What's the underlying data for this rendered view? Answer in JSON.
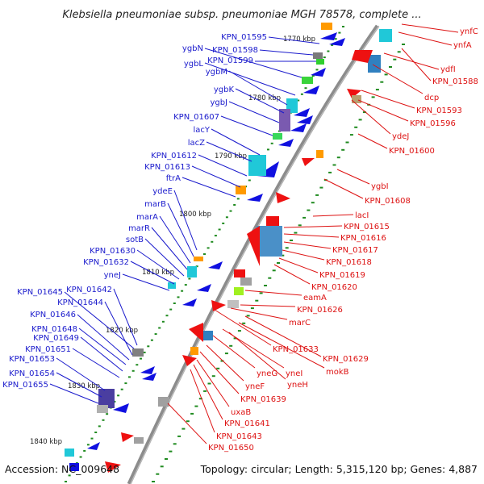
{
  "title": "Klebsiella pneumoniae subsp. pneumoniae MGH 78578, complete ...",
  "footer": {
    "accession": "Accession: NC_009648",
    "summary": "Topology: circular; Length: 5,315,120 bp; Genes: 4,887"
  },
  "colors": {
    "backbone": "#8c8c8c",
    "left_strand_genes": "#1010e0",
    "right_strand_genes": "#ee1111",
    "left_labels": "#1a1acc",
    "right_labels": "#dd1111",
    "tick_marks": "#1f8a1f"
  },
  "kbp_ticks": [
    "1770 kbp",
    "1780 kbp",
    "1790 kbp",
    "1800 kbp",
    "1810 kbp",
    "1820 kbp",
    "1830 kbp",
    "1840 kbp"
  ],
  "left_labels": [
    "KPN_01595",
    "KPN_01598",
    "ygbN",
    "KPN_01599",
    "ygbL",
    "ygbM",
    "ygbK",
    "ygbJ",
    "KPN_01607",
    "lacY",
    "lacZ",
    "KPN_01612",
    "KPN_01613",
    "ftrA",
    "ydeE",
    "marB",
    "marA",
    "marR",
    "sotB",
    "KPN_01630",
    "KPN_01632",
    "yneJ",
    "KPN_01642",
    "KPN_01645",
    "KPN_01644",
    "KPN_01646",
    "KPN_01648",
    "KPN_01649",
    "KPN_01651",
    "KPN_01653",
    "KPN_01654",
    "KPN_01655"
  ],
  "right_labels": [
    "ynfC",
    "ynfA",
    "ydfI",
    "KPN_01588",
    "dcp",
    "KPN_01593",
    "KPN_01596",
    "ydeJ",
    "KPN_01600",
    "ygbI",
    "KPN_01608",
    "lacI",
    "KPN_01615",
    "KPN_01616",
    "KPN_01617",
    "KPN_01618",
    "KPN_01619",
    "KPN_01620",
    "eamA",
    "KPN_01626",
    "marC",
    "KPN_01633",
    "KPN_01629",
    "mokB",
    "yneI",
    "yneG",
    "yneH",
    "yneF",
    "KPN_01639",
    "uxaB",
    "KPN_01641",
    "KPN_01643",
    "KPN_01650"
  ]
}
